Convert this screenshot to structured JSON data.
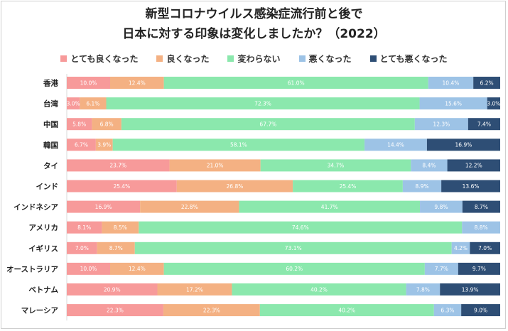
{
  "title_line1": "新型コロナウイルス感染症流行前と後で",
  "title_line2": "日本に対する印象は変化しましたか？（2022）",
  "chart_data": {
    "type": "bar",
    "orientation": "horizontal",
    "stacked": true,
    "stack_mode": "percent",
    "categories": [
      "香港",
      "台湾",
      "中国",
      "韓国",
      "タイ",
      "インド",
      "インドネシア",
      "アメリカ",
      "イギリス",
      "オーストラリア",
      "ベトナム",
      "マレーシア"
    ],
    "legend_position": "top",
    "grid": false,
    "series": [
      {
        "name": "とても良くなった",
        "color": "#f79a9a",
        "label_color": "#ffffff",
        "values": [
          10.0,
          3.0,
          5.8,
          6.7,
          23.7,
          25.4,
          16.9,
          8.1,
          7.0,
          10.0,
          20.9,
          22.3
        ]
      },
      {
        "name": "良くなった",
        "color": "#f4b183",
        "label_color": "#ffffff",
        "values": [
          12.4,
          6.1,
          6.8,
          3.9,
          21.0,
          26.8,
          22.8,
          8.5,
          8.7,
          12.4,
          17.2,
          22.3
        ]
      },
      {
        "name": "変わらない",
        "color": "#8be8ad",
        "label_color": "#ffffff",
        "values": [
          61.0,
          72.3,
          67.7,
          58.1,
          34.7,
          25.4,
          41.7,
          74.6,
          73.1,
          60.2,
          40.2,
          40.2
        ]
      },
      {
        "name": "悪くなった",
        "color": "#9dc3e6",
        "label_color": "#ffffff",
        "values": [
          10.4,
          15.6,
          12.3,
          14.4,
          8.4,
          8.9,
          9.8,
          8.8,
          4.2,
          7.7,
          7.8,
          6.3
        ]
      },
      {
        "name": "とても悪くなった",
        "color": "#2e4e75",
        "label_color": "#ffffff",
        "values": [
          6.2,
          3.0,
          7.4,
          16.9,
          12.2,
          13.6,
          8.7,
          0,
          7.0,
          9.7,
          13.9,
          9.0
        ]
      }
    ]
  }
}
